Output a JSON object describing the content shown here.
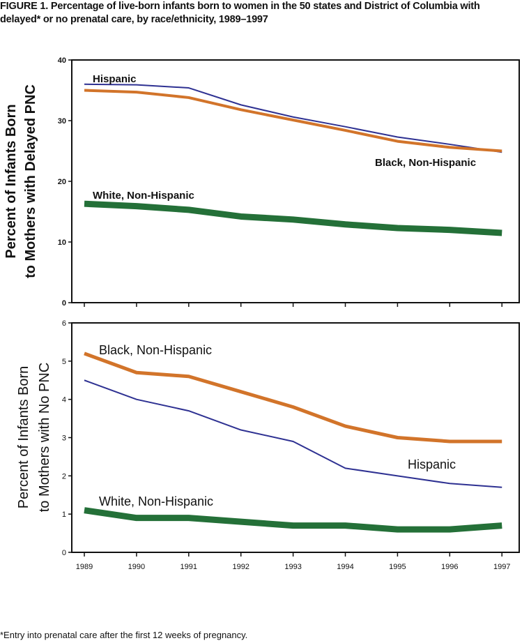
{
  "title": "FIGURE 1. Percentage of live-born infants born to women in the 50 states and District of Columbia with delayed* or no prenatal care, by race/ethnicity, 1989–1997",
  "footnote": "*Entry into prenatal care after the first 12 weeks of pregnancy.",
  "chart_data": [
    {
      "type": "line",
      "ylabel": [
        "Percent of Infants Born",
        "to Mothers with Delayed PNC"
      ],
      "ylim": [
        0,
        40
      ],
      "yticks": [
        0,
        10,
        20,
        30,
        40
      ],
      "x": [
        1989,
        1990,
        1991,
        1992,
        1993,
        1994,
        1995,
        1996,
        1997
      ],
      "grid": false,
      "series": [
        {
          "name": "Hispanic",
          "color": "#2e3192",
          "values": [
            36.0,
            35.9,
            35.4,
            32.6,
            30.6,
            29.0,
            27.3,
            26.1,
            24.8
          ]
        },
        {
          "name": "Black, Non-Hispanic",
          "color": "#d2742a",
          "values": [
            35.0,
            34.7,
            33.8,
            31.8,
            30.1,
            28.4,
            26.6,
            25.6,
            25.0
          ]
        },
        {
          "name": "White, Non-Hispanic",
          "color": "#247038",
          "values": [
            16.3,
            15.9,
            15.3,
            14.2,
            13.7,
            12.9,
            12.3,
            12.0,
            11.5
          ]
        }
      ]
    },
    {
      "type": "line",
      "ylabel": [
        "Percent of Infants Born",
        "to Mothers with No PNC"
      ],
      "ylim": [
        0,
        6
      ],
      "yticks": [
        0,
        1,
        2,
        3,
        4,
        5,
        6
      ],
      "x": [
        1989,
        1990,
        1991,
        1992,
        1993,
        1994,
        1995,
        1996,
        1997
      ],
      "grid": false,
      "series": [
        {
          "name": "Black, Non-Hispanic",
          "color": "#d2742a",
          "values": [
            5.2,
            4.7,
            4.6,
            4.2,
            3.8,
            3.3,
            3.0,
            2.9,
            2.9
          ]
        },
        {
          "name": "Hispanic",
          "color": "#2e3192",
          "values": [
            4.5,
            4.0,
            3.7,
            3.2,
            2.9,
            2.2,
            2.0,
            1.8,
            1.7
          ]
        },
        {
          "name": "White, Non-Hispanic",
          "color": "#247038",
          "values": [
            1.1,
            0.9,
            0.9,
            0.8,
            0.7,
            0.7,
            0.6,
            0.6,
            0.7
          ]
        }
      ]
    }
  ]
}
